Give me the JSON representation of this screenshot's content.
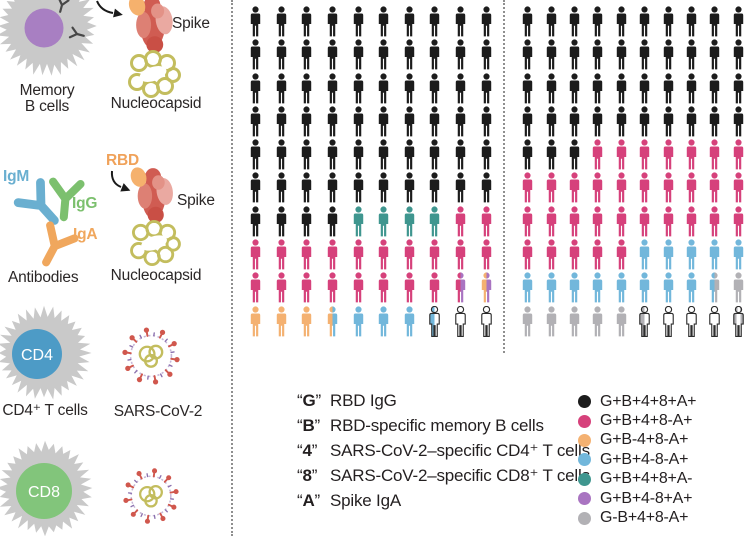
{
  "figure": {
    "quotes": {
      "open": "“",
      "close": "”"
    },
    "left_panel": {
      "memory_b_label": "Memory\nB cells",
      "spike_top_label": "Spike",
      "nucleocapsid_top_label": "Nucleocapsid",
      "igm_label": "IgM",
      "igg_label": "IgG",
      "iga_label": "IgA",
      "antibodies_label": "Antibodies",
      "rbd_label": "RBD",
      "spike_label": "Spike",
      "nucleocapsid_label": "Nucleocapsid",
      "cd4_badge": "CD4",
      "cd4_label": "CD4⁺ T cells",
      "sars_cov2_label": "SARS-CoV-2",
      "cd8_badge": "CD8"
    }
  },
  "chart_data": {
    "type": "pictogram",
    "outline_color": "#2d2d2d",
    "token_colors": {
      "K": "#1c1c1c",
      "P": "#d6417b",
      "T": "#3f968f",
      "O": "#f4b171",
      "L": "#72b7db",
      "V": "#a974c1",
      "G": "#b2b1b5",
      "W": "#ffffff"
    },
    "token_labels": {
      "K": "G+B+4+8+A+",
      "P": "G+B+4+8-A+",
      "O": "G+B-4+8-A+",
      "L": "G+B+4-8-A+",
      "T": "G+B+4+8+A-",
      "V": "G+B+4-8+A+",
      "G": "G-B+4+8-A+",
      "W": ""
    },
    "grids": [
      {
        "name": "left",
        "rows": 10,
        "cols": 10,
        "cells": [
          [
            "K",
            "K",
            "K",
            "K",
            "K",
            "K",
            "K",
            "K",
            "K",
            "K"
          ],
          [
            "K",
            "K",
            "K",
            "K",
            "K",
            "K",
            "K",
            "K",
            "K",
            "K"
          ],
          [
            "K",
            "K",
            "K",
            "K",
            "K",
            "K",
            "K",
            "K",
            "K",
            "K"
          ],
          [
            "K",
            "K",
            "K",
            "K",
            "K",
            "K",
            "K",
            "K",
            "K",
            "K"
          ],
          [
            "K",
            "K",
            "K",
            "K",
            "K",
            "K",
            "K",
            "K",
            "K",
            "K"
          ],
          [
            "K",
            "K",
            "K",
            "K",
            "K",
            "K",
            "K",
            "K",
            "K",
            "K"
          ],
          [
            "K",
            "K",
            "K",
            "K",
            "T",
            "T",
            "T",
            "T",
            "P",
            "P"
          ],
          [
            "P",
            "P",
            "P",
            "P",
            "P",
            "P",
            "P",
            "P",
            "P",
            "P"
          ],
          [
            "P",
            "P",
            "P",
            "P",
            "P",
            "P",
            "P",
            "P",
            "P|V",
            "O|V"
          ],
          [
            "O",
            "O",
            "O",
            "O|L",
            "L",
            "L",
            "L",
            "L|W",
            "W",
            "W"
          ]
        ]
      },
      {
        "name": "right",
        "rows": 10,
        "cols": 10,
        "cells": [
          [
            "K",
            "K",
            "K",
            "K",
            "K",
            "K",
            "K",
            "K",
            "K",
            "K"
          ],
          [
            "K",
            "K",
            "K",
            "K",
            "K",
            "K",
            "K",
            "K",
            "K",
            "K"
          ],
          [
            "K",
            "K",
            "K",
            "K",
            "K",
            "K",
            "K",
            "K",
            "K",
            "K"
          ],
          [
            "K",
            "K",
            "K",
            "K",
            "K",
            "K",
            "K",
            "K",
            "K",
            "K"
          ],
          [
            "K",
            "K",
            "K",
            "P",
            "P",
            "P",
            "P",
            "P",
            "P",
            "P"
          ],
          [
            "P",
            "P",
            "P",
            "P",
            "P",
            "P",
            "P",
            "P",
            "P",
            "P"
          ],
          [
            "P",
            "P",
            "P",
            "P",
            "P",
            "P",
            "P",
            "P",
            "P",
            "P"
          ],
          [
            "P",
            "P",
            "P",
            "P",
            "P",
            "L",
            "L",
            "L",
            "L",
            "L"
          ],
          [
            "L",
            "L",
            "L",
            "L",
            "L",
            "L",
            "L",
            "L",
            "L|G",
            "G"
          ],
          [
            "G",
            "G",
            "G",
            "G",
            "G",
            "G|W",
            "W",
            "W",
            "W",
            "GWG"
          ]
        ]
      }
    ],
    "key_legend": [
      {
        "letter": "G",
        "text": "RBD IgG"
      },
      {
        "letter": "B",
        "text": "RBD-specific memory B cells"
      },
      {
        "letter": "4",
        "text": "SARS-CoV-2–specific CD4⁺ T cells"
      },
      {
        "letter": "8",
        "text": "SARS-CoV-2–specific CD8⁺ T cells"
      },
      {
        "letter": "A",
        "text": "Spike IgA"
      }
    ],
    "color_legend": [
      {
        "token": "K",
        "label": "G+B+4+8+A+"
      },
      {
        "token": "P",
        "label": "G+B+4+8-A+"
      },
      {
        "token": "O",
        "label": "G+B-4+8-A+"
      },
      {
        "token": "L",
        "label": "G+B+4-8-A+"
      },
      {
        "token": "T",
        "label": "G+B+4+8+A-"
      },
      {
        "token": "V",
        "label": "G+B+4-8+A+"
      },
      {
        "token": "G",
        "label": "G-B+4+8-A+"
      }
    ]
  }
}
